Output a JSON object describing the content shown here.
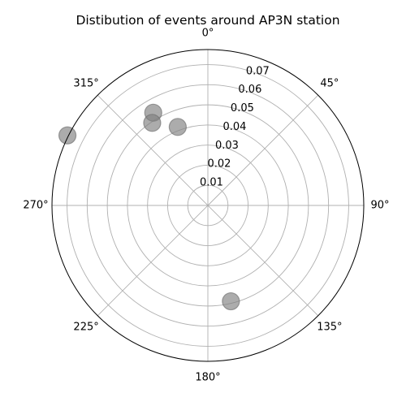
{
  "chart_data": {
    "type": "scatter",
    "projection": "polar",
    "title": "Distibution of events around AP3N station",
    "theta_zero_location": "N",
    "theta_direction": "clockwise",
    "theta_ticks": [
      {
        "deg": 0,
        "label": "0°"
      },
      {
        "deg": 45,
        "label": "45°"
      },
      {
        "deg": 90,
        "label": "90°"
      },
      {
        "deg": 135,
        "label": "135°"
      },
      {
        "deg": 180,
        "label": "180°"
      },
      {
        "deg": 225,
        "label": "225°"
      },
      {
        "deg": 270,
        "label": "270°"
      },
      {
        "deg": 315,
        "label": "315°"
      }
    ],
    "r_ticks": [
      {
        "value": 0.01,
        "label": "0.01"
      },
      {
        "value": 0.02,
        "label": "0.02"
      },
      {
        "value": 0.03,
        "label": "0.03"
      },
      {
        "value": 0.04,
        "label": "0.04"
      },
      {
        "value": 0.05,
        "label": "0.05"
      },
      {
        "value": 0.06,
        "label": "0.06"
      },
      {
        "value": 0.07,
        "label": "0.07"
      }
    ],
    "rlim": [
      0,
      0.0775
    ],
    "radial_label_angle_deg": 22.5,
    "grid": true,
    "points": [
      {
        "theta_deg": 296.5,
        "r": 0.078
      },
      {
        "theta_deg": 329.5,
        "r": 0.0535
      },
      {
        "theta_deg": 326.0,
        "r": 0.0495
      },
      {
        "theta_deg": 339.0,
        "r": 0.0418
      },
      {
        "theta_deg": 166.5,
        "r": 0.049
      }
    ],
    "marker_color": "#808080",
    "marker_alpha": 0.65,
    "grid_color": "#b0b0b0",
    "axis_color": "#000000"
  }
}
